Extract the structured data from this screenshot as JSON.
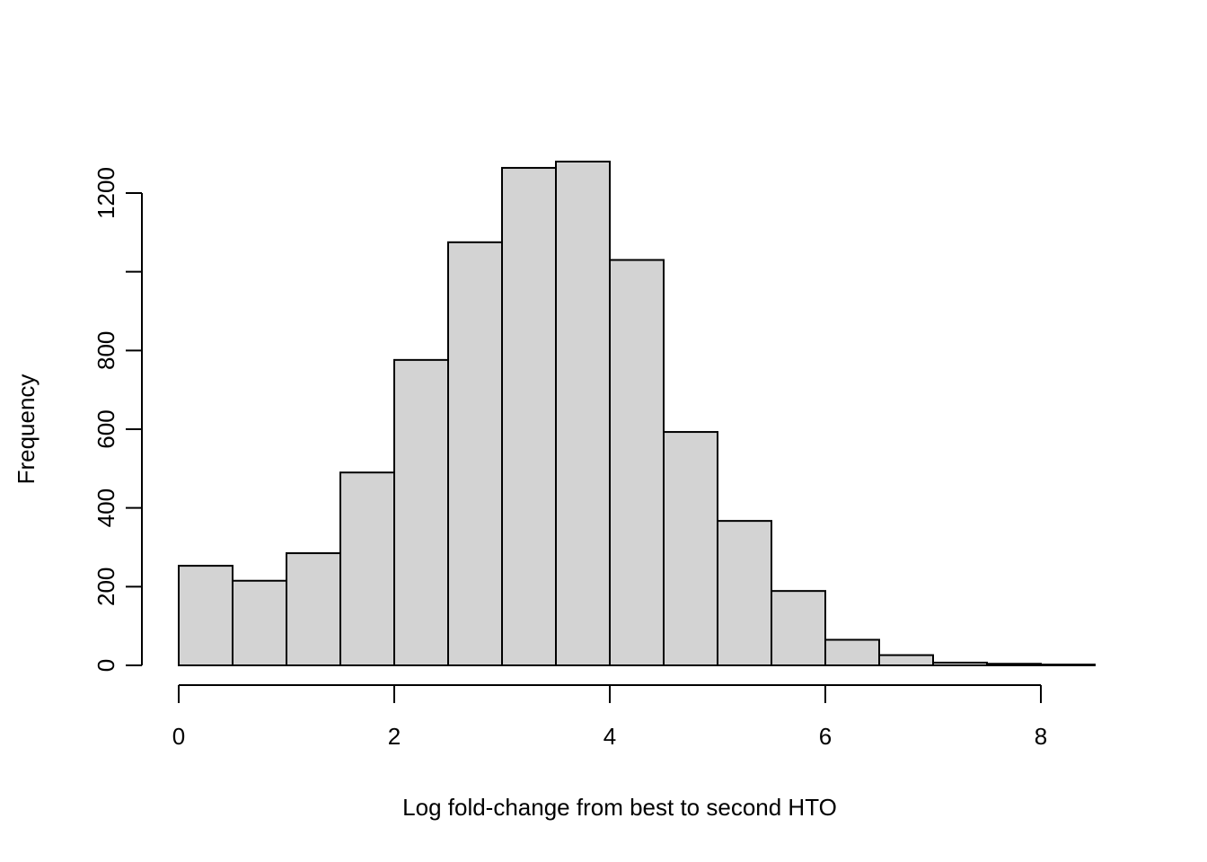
{
  "chart_data": {
    "type": "bar",
    "subtype": "histogram",
    "title": "",
    "xlabel": "Log fold-change from best to second HTO",
    "ylabel": "Frequency",
    "xlim": [
      0,
      8.5
    ],
    "ylim": [
      0,
      1200
    ],
    "bin_width": 0.5,
    "bin_edges": [
      0,
      0.5,
      1,
      1.5,
      2,
      2.5,
      3,
      3.5,
      4,
      4.5,
      5,
      5.5,
      6,
      6.5,
      7,
      7.5,
      8,
      8.5
    ],
    "values": [
      253,
      215,
      285,
      490,
      776,
      1075,
      1264,
      1280,
      1030,
      593,
      367,
      189,
      65,
      26,
      7,
      4,
      2
    ],
    "x_ticks": [
      0,
      2,
      4,
      6,
      8
    ],
    "x_tick_labels": [
      "0",
      "2",
      "4",
      "6",
      "8"
    ],
    "y_ticks": [
      0,
      200,
      400,
      600,
      800,
      1000,
      1200
    ],
    "y_tick_labels": [
      "0",
      "200",
      "400",
      "600",
      "800",
      "",
      "1200"
    ],
    "grid": false,
    "legend": false,
    "bar_fill": "#d3d3d3",
    "bar_stroke": "#000000",
    "axis_color": "#000000",
    "text_color": "#000000",
    "background": "#ffffff"
  }
}
